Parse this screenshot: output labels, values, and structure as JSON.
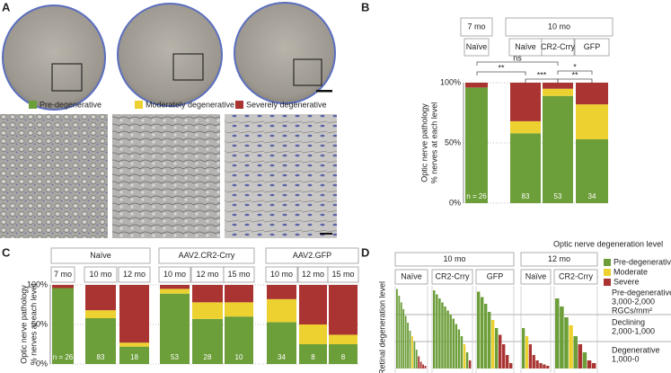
{
  "panel_a": {
    "label": "A",
    "legend": [
      {
        "name": "Pre-degenerative",
        "color": "#6c9e3a"
      },
      {
        "name": "Moderately degenerative",
        "color": "#ecd130"
      },
      {
        "name": "Severely degenerative",
        "color": "#a93432"
      }
    ]
  },
  "chart_data": [
    {
      "type": "stacked-bar",
      "panel_label": "B",
      "y_label": [
        "Optic nerve pathology",
        "% nerves at each level"
      ],
      "groups": [
        {
          "label": "7 mo",
          "categories": [
            "Naïve"
          ]
        },
        {
          "label": "10 mo",
          "categories": [
            "Naïve",
            "CR2-Crry",
            "GFP"
          ]
        }
      ],
      "series": [
        {
          "color": "#6c9e3a",
          "values": [
            96,
            58,
            89,
            53
          ]
        },
        {
          "color": "#ecd130",
          "values": [
            0,
            10,
            6,
            29
          ]
        },
        {
          "color": "#a93432",
          "values": [
            4,
            32,
            5,
            18
          ]
        }
      ],
      "n": [
        "n = 26",
        83,
        53,
        34
      ],
      "significance": [
        "ns",
        "**",
        "***",
        "*",
        "**"
      ],
      "ylim": [
        0,
        100
      ],
      "yticks": [
        {
          "value": 0,
          "label": "0%"
        },
        {
          "value": 50,
          "label": "50%"
        },
        {
          "value": 100,
          "label": "100%"
        }
      ]
    },
    {
      "type": "stacked-bar",
      "panel_label": "C",
      "y_label": [
        "Optic nerve pathology",
        "% nerves at each level"
      ],
      "groups": [
        {
          "label": "Naïve",
          "categories": [
            "7 mo",
            "10 mo",
            "12 mo"
          ]
        },
        {
          "label": "AAV2.CR2-Crry",
          "categories": [
            "10 mo",
            "12 mo",
            "15 mo"
          ]
        },
        {
          "label": "AAV2.GFP",
          "categories": [
            "10 mo",
            "12 mo",
            "15 mo"
          ]
        }
      ],
      "series": [
        {
          "color": "#6c9e3a",
          "values": [
            96,
            58,
            22,
            89,
            57,
            60,
            53,
            25,
            25
          ]
        },
        {
          "color": "#ecd130",
          "values": [
            0,
            10,
            5,
            6,
            21,
            18,
            29,
            25,
            12
          ]
        },
        {
          "color": "#a93432",
          "values": [
            4,
            32,
            73,
            5,
            22,
            22,
            18,
            50,
            63
          ]
        }
      ],
      "n": [
        "n = 26",
        83,
        18,
        53,
        28,
        10,
        34,
        8,
        8
      ],
      "ylim": [
        0,
        100
      ],
      "yticks": [
        {
          "value": 0,
          "label": "0%"
        },
        {
          "value": 50,
          "label": "50%"
        },
        {
          "value": 100,
          "label": "100%"
        }
      ]
    },
    {
      "type": "waterfall",
      "panel_label": "D",
      "y_label": "Retinal degeneration level",
      "legend_title": "Optic nerve degeneration level",
      "series": [
        {
          "name": "Pre-degenerative",
          "color": "#6c9e3a"
        },
        {
          "name": "Moderate",
          "color": "#ecd130"
        },
        {
          "name": "Severe",
          "color": "#a93432"
        }
      ],
      "zones": [
        [
          "Pre-degenerative",
          "3,000-2,000",
          "RGCs/mm²"
        ],
        [
          "Declining",
          "2,000-1,000"
        ],
        [
          "Degenerative",
          "1,000-0"
        ]
      ],
      "ylim": [
        0,
        3000
      ],
      "yticks": [
        1000,
        2000
      ],
      "groups": [
        {
          "label": "10 mo",
          "subgroups": [
            {
              "label": "Naïve",
              "bars": [
                [
                  2950,
                  2700,
                  2450,
                  2200,
                  1950,
                  1700,
                  1400,
                  null,
                  1000,
                  700,
                  null,
                  null,
                  null,
                  null
                ],
                [
                  null,
                  null,
                  null,
                  null,
                  null,
                  null,
                  null,
                  1200,
                  null,
                  null,
                  null,
                  null,
                  null,
                  null
                ],
                [
                  null,
                  null,
                  null,
                  null,
                  null,
                  null,
                  null,
                  null,
                  null,
                  null,
                  450,
                  250,
                  150,
                  100
                ]
              ]
            },
            {
              "label": "CR2-Crry",
              "bars": [
                [
                  2900,
                  2750,
                  2600,
                  2450,
                  2300,
                  2150,
                  2000,
                  1850,
                  1650,
                  1450,
                  1200,
                  null,
                  600,
                  null
                ],
                [
                  null,
                  null,
                  null,
                  null,
                  null,
                  null,
                  null,
                  null,
                  null,
                  null,
                  null,
                  900,
                  null,
                  null
                ],
                [
                  null,
                  null,
                  null,
                  null,
                  null,
                  null,
                  null,
                  null,
                  null,
                  null,
                  null,
                  null,
                  null,
                  300
                ]
              ]
            },
            {
              "label": "GFP",
              "bars": [
                [
                  2850,
                  2650,
                  2400,
                  2100,
                  null,
                  1500,
                  null,
                  null,
                  null,
                  null
                ],
                [
                  null,
                  null,
                  null,
                  null,
                  1800,
                  null,
                  null,
                  null,
                  null,
                  null
                ],
                [
                  null,
                  null,
                  null,
                  null,
                  null,
                  null,
                  1250,
                  900,
                  500,
                  200
                ]
              ]
            }
          ]
        },
        {
          "label": "12 mo",
          "subgroups": [
            {
              "label": "Naïve",
              "bars": [
                [
                  1500,
                  null,
                  null,
                  null,
                  null,
                  null,
                  null,
                  null
                ],
                [
                  null,
                  1200,
                  null,
                  null,
                  null,
                  null,
                  null,
                  null
                ],
                [
                  null,
                  null,
                  900,
                  500,
                  300,
                  200,
                  150,
                  100
                ]
              ]
            },
            {
              "label": "CR2-Crry",
              "bars": [
                [
                  2600,
                  2300,
                  1900,
                  null,
                  1200,
                  null,
                  600,
                  null,
                  null
                ],
                [
                  null,
                  null,
                  null,
                  1600,
                  null,
                  null,
                  null,
                  null,
                  null
                ],
                [
                  null,
                  null,
                  null,
                  null,
                  null,
                  900,
                  null,
                  300,
                  200
                ]
              ]
            }
          ]
        }
      ]
    }
  ]
}
